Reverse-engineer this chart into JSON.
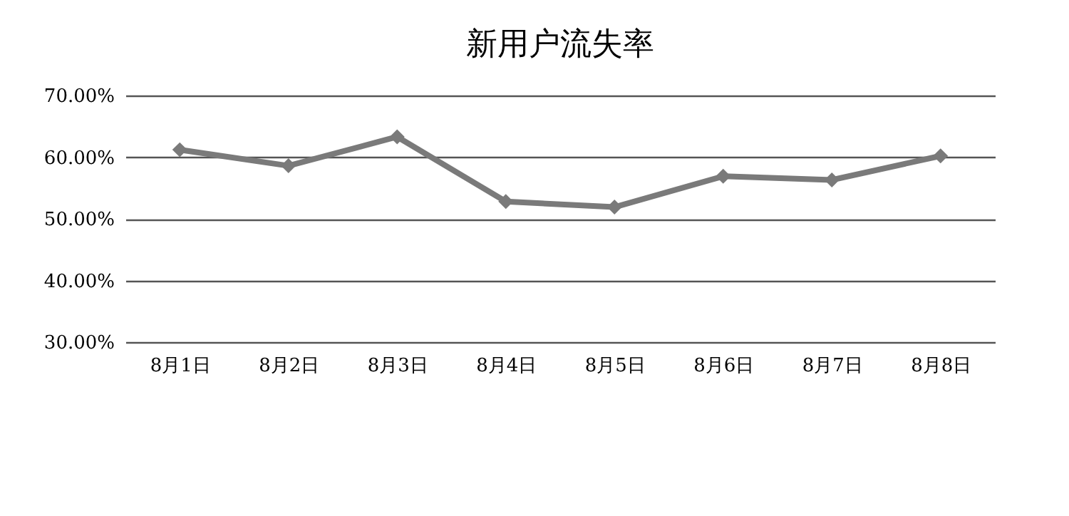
{
  "chart_data": {
    "type": "line",
    "title": "新用户流失率",
    "categories": [
      "8月1日",
      "8月2日",
      "8月3日",
      "8月4日",
      "8月5日",
      "8月6日",
      "8月7日",
      "8月8日"
    ],
    "series": [
      {
        "color": "#7a7a7a",
        "values": [
          61.2,
          58.6,
          63.3,
          52.8,
          51.9,
          56.9,
          56.3,
          60.2
        ]
      }
    ],
    "ylim": [
      30,
      70
    ],
    "yticks": [
      {
        "value": 30,
        "label": "30.00%"
      },
      {
        "value": 40,
        "label": "40.00%"
      },
      {
        "value": 50,
        "label": "50.00%"
      },
      {
        "value": 60,
        "label": "60.00%"
      },
      {
        "value": 70,
        "label": "70.00%"
      }
    ],
    "grid": "y",
    "marker": "diamond",
    "line_style": "solid"
  }
}
